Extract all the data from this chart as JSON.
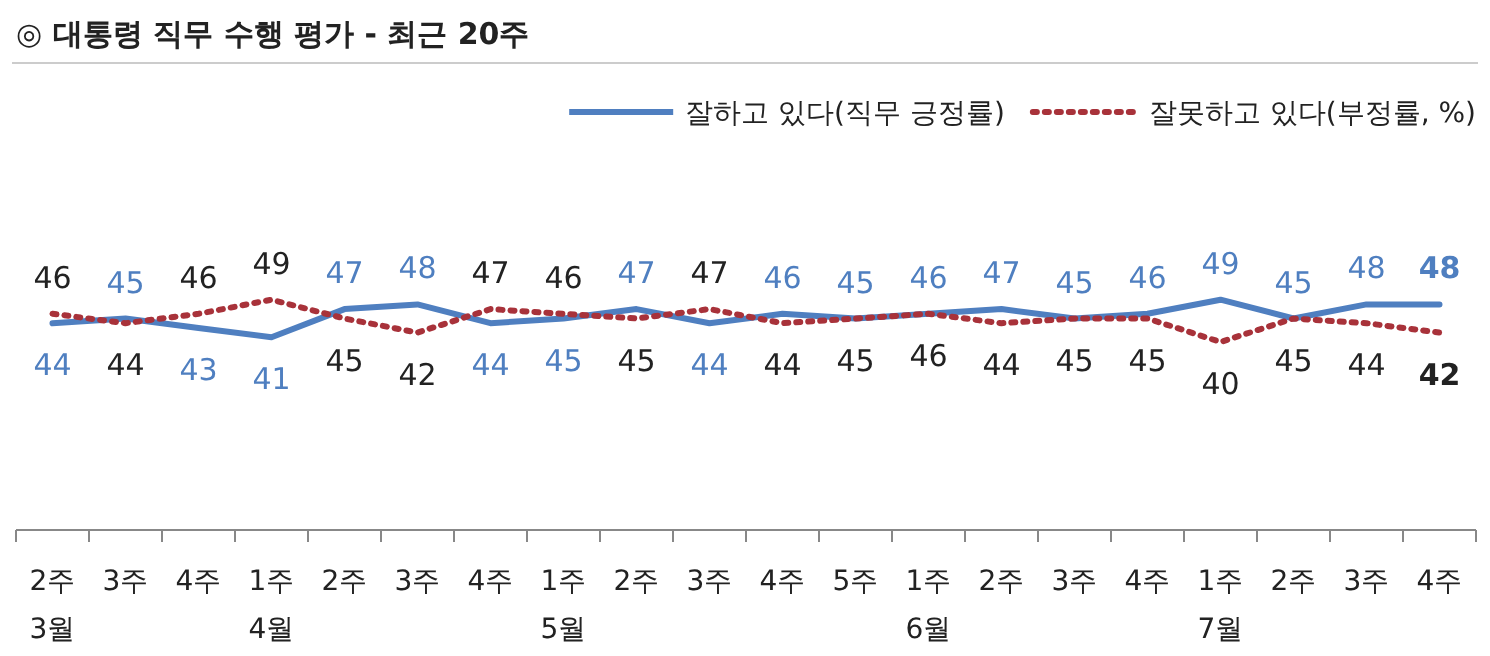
{
  "chart_data": {
    "type": "line",
    "title": "◎ 대통령 직무 수행 평가 - 최근 20주",
    "categories": [
      "2주\n3월",
      "3주",
      "4주",
      "1주\n4월",
      "2주",
      "3주",
      "4주",
      "1주\n5월",
      "2주",
      "3주",
      "4주",
      "5주",
      "1주\n6월",
      "2주",
      "3주",
      "4주",
      "1주\n7월",
      "2주",
      "3주",
      "4주"
    ],
    "series": [
      {
        "name": "잘하고 있다(직무 긍정률)",
        "color": "#4f7fc0",
        "line_style": "solid",
        "values": [
          44,
          45,
          43,
          41,
          47,
          48,
          44,
          45,
          47,
          44,
          46,
          45,
          46,
          47,
          45,
          46,
          49,
          45,
          48,
          48
        ]
      },
      {
        "name": "잘못하고 있다(부정률, %)",
        "color": "#a8323a",
        "line_style": "dotted",
        "values": [
          46,
          44,
          46,
          49,
          45,
          42,
          47,
          46,
          45,
          47,
          44,
          45,
          46,
          44,
          45,
          45,
          40,
          45,
          44,
          42
        ]
      }
    ],
    "ylim": [
      0,
      100
    ],
    "data_labels": true,
    "legend": "top right",
    "marker": "none"
  }
}
